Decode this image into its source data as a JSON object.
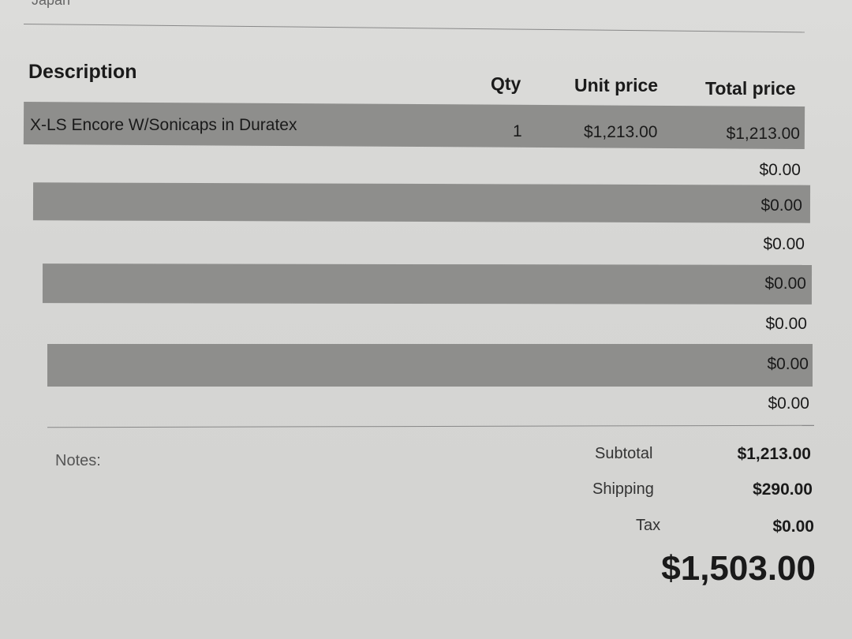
{
  "country": "Japan",
  "table": {
    "headers": {
      "description": "Description",
      "qty": "Qty",
      "unit_price": "Unit price",
      "total_price": "Total price"
    },
    "rows": [
      {
        "description": "X-LS Encore W/Sonicaps in Duratex",
        "qty": "1",
        "unit_price": "$1,213.00",
        "total_price": "$1,213.00"
      },
      {
        "description": "",
        "qty": "",
        "unit_price": "",
        "total_price": "$0.00"
      },
      {
        "description": "",
        "qty": "",
        "unit_price": "",
        "total_price": "$0.00"
      },
      {
        "description": "",
        "qty": "",
        "unit_price": "",
        "total_price": "$0.00"
      },
      {
        "description": "",
        "qty": "",
        "unit_price": "",
        "total_price": "$0.00"
      },
      {
        "description": "",
        "qty": "",
        "unit_price": "",
        "total_price": "$0.00"
      },
      {
        "description": "",
        "qty": "",
        "unit_price": "",
        "total_price": "$0.00"
      },
      {
        "description": "",
        "qty": "",
        "unit_price": "",
        "total_price": "$0.00"
      }
    ]
  },
  "notes_label": "Notes:",
  "summary": {
    "subtotal_label": "Subtotal",
    "subtotal": "$1,213.00",
    "shipping_label": "Shipping",
    "shipping": "$290.00",
    "tax_label": "Tax",
    "tax": "$0.00",
    "total": "$1,503.00"
  }
}
